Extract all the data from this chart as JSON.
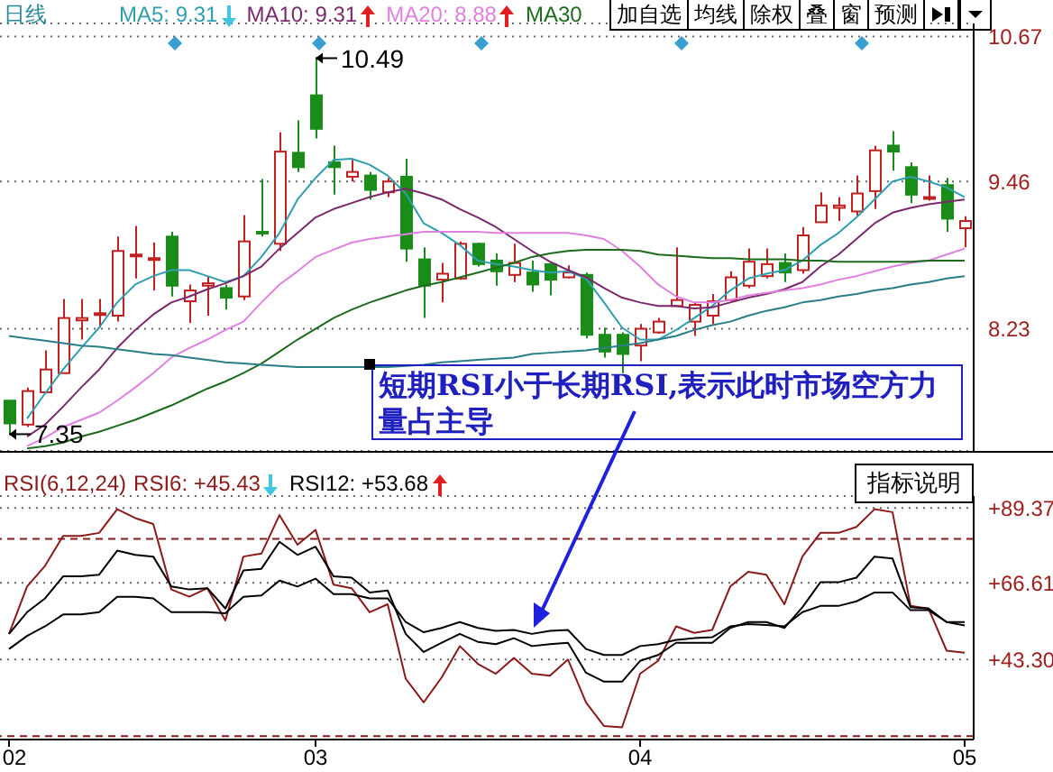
{
  "chart_data": [
    {
      "type": "candlestick",
      "title": "日线",
      "categories": [
        "02",
        null,
        null,
        null,
        null,
        null,
        null,
        null,
        null,
        null,
        null,
        null,
        null,
        null,
        null,
        null,
        null,
        "03",
        null,
        null,
        null,
        null,
        null,
        null,
        null,
        null,
        null,
        null,
        null,
        null,
        null,
        null,
        null,
        null,
        null,
        "04",
        null,
        null,
        null,
        null,
        null,
        null,
        null,
        null,
        null,
        null,
        null,
        null,
        null,
        null,
        null,
        null,
        null,
        "05"
      ],
      "series": [
        {
          "type": "candlestick",
          "ohlc": [
            [
              7.63,
              7.63,
              7.35,
              7.44
            ],
            [
              7.43,
              7.74,
              7.41,
              7.71
            ],
            [
              7.7,
              8.05,
              7.69,
              7.89
            ],
            [
              7.86,
              8.48,
              7.86,
              8.32
            ],
            [
              8.3,
              8.48,
              8.14,
              8.32
            ],
            [
              8.35,
              8.48,
              8.24,
              8.36
            ],
            [
              8.34,
              9.0,
              8.29,
              8.88
            ],
            [
              8.84,
              9.09,
              8.65,
              8.85
            ],
            [
              8.81,
              8.95,
              8.55,
              8.82
            ],
            [
              9.0,
              9.04,
              8.5,
              8.59
            ],
            [
              8.46,
              8.6,
              8.28,
              8.55
            ],
            [
              8.59,
              8.67,
              8.34,
              8.61
            ],
            [
              8.57,
              8.6,
              8.39,
              8.49
            ],
            [
              8.5,
              9.18,
              8.47,
              8.96
            ],
            [
              9.04,
              9.48,
              9.0,
              9.03
            ],
            [
              8.94,
              9.87,
              8.88,
              9.71
            ],
            [
              9.7,
              9.97,
              9.54,
              9.58
            ],
            [
              10.18,
              10.49,
              9.82,
              9.9
            ],
            [
              9.62,
              9.76,
              9.35,
              9.58
            ],
            [
              9.5,
              9.64,
              9.46,
              9.54
            ],
            [
              9.51,
              9.54,
              9.31,
              9.39
            ],
            [
              9.37,
              9.49,
              9.33,
              9.46
            ],
            [
              9.5,
              9.65,
              8.79,
              8.9
            ],
            [
              8.81,
              8.91,
              8.32,
              8.59
            ],
            [
              8.64,
              8.78,
              8.45,
              8.69
            ],
            [
              8.65,
              8.96,
              8.64,
              8.94
            ],
            [
              8.94,
              8.95,
              8.75,
              8.77
            ],
            [
              8.8,
              8.86,
              8.59,
              8.71
            ],
            [
              8.68,
              8.94,
              8.62,
              8.78
            ],
            [
              8.7,
              8.8,
              8.54,
              8.6
            ],
            [
              8.77,
              8.78,
              8.51,
              8.64
            ],
            [
              8.66,
              8.76,
              8.65,
              8.7
            ],
            [
              8.68,
              8.7,
              8.15,
              8.18
            ],
            [
              8.18,
              8.24,
              7.99,
              8.04
            ],
            [
              8.18,
              8.2,
              7.86,
              8.02
            ],
            [
              8.09,
              8.27,
              7.96,
              8.23
            ],
            [
              8.2,
              8.32,
              8.19,
              8.29
            ],
            [
              8.42,
              8.91,
              8.42,
              8.47
            ],
            [
              8.29,
              8.45,
              8.17,
              8.43
            ],
            [
              8.34,
              8.52,
              8.27,
              8.46
            ],
            [
              8.47,
              8.71,
              8.46,
              8.66
            ],
            [
              8.59,
              8.9,
              8.57,
              8.79
            ],
            [
              8.67,
              8.9,
              8.65,
              8.77
            ],
            [
              8.78,
              8.86,
              8.62,
              8.7
            ],
            [
              8.72,
              9.08,
              8.69,
              9.01
            ],
            [
              9.12,
              9.37,
              9.12,
              9.26
            ],
            [
              9.24,
              9.33,
              9.13,
              9.26
            ],
            [
              9.21,
              9.51,
              9.17,
              9.36
            ],
            [
              9.38,
              9.76,
              9.23,
              9.72
            ],
            [
              9.76,
              9.88,
              9.55,
              9.71
            ],
            [
              9.58,
              9.62,
              9.28,
              9.35
            ],
            [
              9.32,
              9.51,
              9.3,
              9.33
            ],
            [
              9.43,
              9.49,
              9.04,
              9.15
            ],
            [
              9.07,
              9.17,
              8.91,
              9.13
            ]
          ],
          "colors": [
            "#1a8c1a",
            "#c02020",
            "#c02020",
            "#c02020",
            "#c02020",
            "#c02020",
            "#c02020",
            "#c02020",
            "#c02020",
            "#1a8c1a",
            "#c02020",
            "#c02020",
            "#1a8c1a",
            "#c02020",
            "#1a8c1a",
            "#c02020",
            "#1a8c1a",
            "#1a8c1a",
            "#1a8c1a",
            "#c02020",
            "#1a8c1a",
            "#c02020",
            "#1a8c1a",
            "#1a8c1a",
            "#c02020",
            "#c02020",
            "#1a8c1a",
            "#1a8c1a",
            "#c02020",
            "#1a8c1a",
            "#1a8c1a",
            "#c02020",
            "#1a8c1a",
            "#1a8c1a",
            "#1a8c1a",
            "#c02020",
            "#c02020",
            "#c02020",
            "#c02020",
            "#c02020",
            "#c02020",
            "#c02020",
            "#c02020",
            "#1a8c1a",
            "#c02020",
            "#c02020",
            "#c02020",
            "#c02020",
            "#c02020",
            "#1a8c1a",
            "#1a8c1a",
            "#c02020",
            "#1a8c1a",
            "#c02020"
          ]
        },
        {
          "type": "line",
          "name": "MA5: 9.31",
          "color": "#2f9fb0",
          "values": [
            null,
            7.48,
            7.69,
            7.89,
            8.07,
            8.24,
            8.45,
            8.6,
            8.67,
            8.72,
            8.72,
            8.67,
            8.62,
            8.67,
            8.83,
            9.03,
            9.31,
            9.49,
            9.64,
            9.65,
            9.6,
            9.51,
            9.36,
            9.11,
            9.03,
            8.93,
            8.8,
            8.77,
            8.75,
            8.72,
            8.7,
            8.71,
            8.65,
            8.45,
            8.24,
            8.14,
            8.14,
            8.22,
            8.32,
            8.42,
            8.55,
            8.65,
            8.69,
            8.72,
            8.8,
            8.93,
            9.03,
            9.16,
            9.31,
            9.46,
            9.5,
            9.46,
            9.41,
            9.33
          ]
        },
        {
          "type": "line",
          "name": "MA10: 9.31",
          "color": "#7a2a6a",
          "values": [
            null,
            7.33,
            7.43,
            7.58,
            7.74,
            7.89,
            8.07,
            8.22,
            8.35,
            8.45,
            8.5,
            8.56,
            8.61,
            8.67,
            8.75,
            8.9,
            9.03,
            9.16,
            9.23,
            9.28,
            9.33,
            9.37,
            9.4,
            9.36,
            9.31,
            9.23,
            9.16,
            9.08,
            8.98,
            8.88,
            8.79,
            8.72,
            8.66,
            8.57,
            8.49,
            8.45,
            8.42,
            8.42,
            8.4,
            8.41,
            8.45,
            8.49,
            8.52,
            8.56,
            8.62,
            8.75,
            8.85,
            8.98,
            9.11,
            9.2,
            9.24,
            9.27,
            9.29,
            9.31
          ]
        },
        {
          "type": "line",
          "name": "MA20: 8.88",
          "color": "#e080e0",
          "values": [
            null,
            7.25,
            7.32,
            7.41,
            7.47,
            7.53,
            7.63,
            7.74,
            7.86,
            7.99,
            8.07,
            8.14,
            8.22,
            8.29,
            8.45,
            8.6,
            8.71,
            8.83,
            8.89,
            8.95,
            8.98,
            9.0,
            9.02,
            9.04,
            9.04,
            9.04,
            9.04,
            9.03,
            9.03,
            9.03,
            9.03,
            9.03,
            9.01,
            8.98,
            8.88,
            8.75,
            8.6,
            8.5,
            8.45,
            8.45,
            8.47,
            8.51,
            8.53,
            8.55,
            8.57,
            8.6,
            8.64,
            8.67,
            8.71,
            8.75,
            8.78,
            8.8,
            8.85,
            8.9
          ]
        },
        {
          "type": "line",
          "name": "MA30",
          "color": "#1e6b1e",
          "values": [
            null,
            7.23,
            7.25,
            7.28,
            7.33,
            7.37,
            7.42,
            7.47,
            7.53,
            7.59,
            7.66,
            7.73,
            7.79,
            7.86,
            7.94,
            8.04,
            8.14,
            8.23,
            8.32,
            8.39,
            8.45,
            8.5,
            8.55,
            8.59,
            8.62,
            8.66,
            8.7,
            8.74,
            8.78,
            8.83,
            8.86,
            8.88,
            8.89,
            8.89,
            8.89,
            8.88,
            8.85,
            8.84,
            8.83,
            8.82,
            8.82,
            8.81,
            8.81,
            8.81,
            8.8,
            8.8,
            8.79,
            8.79,
            8.79,
            8.79,
            8.79,
            8.8,
            8.8,
            8.8
          ]
        },
        {
          "type": "line",
          "color": "#2a7f86",
          "values": [
            8.17,
            8.15,
            8.13,
            8.11,
            8.09,
            8.08,
            8.06,
            8.04,
            8.02,
            8.01,
            7.99,
            7.97,
            7.95,
            7.94,
            7.93,
            7.92,
            7.91,
            7.91,
            7.91,
            7.91,
            7.91,
            7.91,
            7.92,
            7.93,
            7.95,
            7.96,
            7.97,
            7.98,
            7.99,
            8.02,
            8.03,
            8.04,
            8.05,
            8.07,
            8.09,
            8.11,
            8.14,
            8.17,
            8.22,
            8.26,
            8.29,
            8.34,
            8.38,
            8.41,
            8.45,
            8.47,
            8.5,
            8.52,
            8.55,
            8.57,
            8.6,
            8.62,
            8.65,
            8.67
          ]
        }
      ],
      "ylim": [
        7.21,
        10.78
      ],
      "yticks": [
        8.23,
        9.46,
        10.67
      ],
      "grid": "y",
      "legend": "top left",
      "tick_labels": "y",
      "annotations": [
        "加自选",
        "均线",
        "除权",
        "叠",
        "窗",
        "预测",
        "短期RSI小于长期RSI,表示此时市场空方力量占主导",
        {
          "text": "10.49",
          "x": "03",
          "y": 10.49
        },
        {
          "text": "7.35",
          "x": "02",
          "y": 7.35
        }
      ]
    },
    {
      "type": "line",
      "title": "RSI(6,12,24)",
      "categories": [
        "02",
        null,
        null,
        null,
        null,
        null,
        null,
        null,
        null,
        null,
        null,
        null,
        null,
        null,
        null,
        null,
        null,
        "03",
        null,
        null,
        null,
        null,
        null,
        null,
        null,
        null,
        null,
        null,
        null,
        null,
        null,
        null,
        null,
        null,
        null,
        "04",
        null,
        null,
        null,
        null,
        null,
        null,
        null,
        null,
        null,
        null,
        null,
        null,
        null,
        null,
        null,
        null,
        null,
        "05"
      ],
      "series": [
        {
          "name": "RSI6: +45.43",
          "color": "#8b1a1a",
          "values": [
            51.1,
            65.5,
            71.8,
            80.9,
            80.9,
            81.8,
            89.0,
            86.3,
            84.5,
            64.6,
            62.4,
            65.0,
            55.2,
            74.6,
            75.5,
            87.2,
            78.2,
            82.7,
            66.1,
            65.0,
            57.7,
            60.1,
            37.5,
            30.3,
            37.9,
            47.4,
            42.0,
            39.0,
            43.8,
            39.0,
            38.4,
            43.3,
            30.3,
            23.1,
            22.7,
            39.0,
            42.9,
            53.4,
            51.4,
            52.3,
            65.5,
            70.0,
            69.1,
            60.1,
            74.6,
            81.8,
            81.8,
            83.6,
            89.0,
            88.1,
            59.6,
            58.8,
            46.0,
            45.4
          ]
        },
        {
          "name": "RSI12: +53.68",
          "color": "#000000",
          "values": [
            51.1,
            57.7,
            61.9,
            68.6,
            68.6,
            69.1,
            76.4,
            75.1,
            74.6,
            65.5,
            64.6,
            65.0,
            58.8,
            70.4,
            70.9,
            79.1,
            75.1,
            77.6,
            68.6,
            68.2,
            63.7,
            64.3,
            51.1,
            45.6,
            48.4,
            51.1,
            48.7,
            48.0,
            49.8,
            47.4,
            48.0,
            48.4,
            39.3,
            36.6,
            36.6,
            42.9,
            44.7,
            48.4,
            48.4,
            48.4,
            52.9,
            54.7,
            54.7,
            52.9,
            59.2,
            66.8,
            66.8,
            68.2,
            74.6,
            74.0,
            59.2,
            58.8,
            54.7,
            53.7
          ]
        },
        {
          "color": "#000000",
          "values": [
            46.5,
            50.5,
            53.4,
            57.0,
            57.0,
            57.7,
            62.4,
            62.4,
            61.9,
            57.7,
            57.7,
            57.7,
            57.4,
            62.4,
            62.8,
            67.3,
            65.5,
            67.9,
            63.2,
            63.2,
            61.9,
            61.9,
            54.7,
            51.6,
            52.9,
            54.7,
            52.9,
            52.0,
            52.3,
            51.1,
            52.0,
            52.3,
            46.5,
            44.7,
            44.7,
            47.4,
            48.0,
            49.3,
            49.8,
            50.1,
            53.4,
            54.1,
            53.8,
            53.4,
            57.7,
            59.6,
            59.6,
            61.0,
            63.7,
            63.7,
            58.3,
            58.3,
            54.7,
            54.7
          ]
        }
      ],
      "ylim": [
        19,
        93
      ],
      "yticks": [
        {
          "value": 43.3,
          "label": "+43.30"
        },
        {
          "value": 66.61,
          "label": "+66.61"
        },
        {
          "value": 89.37,
          "label": "+89.37"
        }
      ],
      "grid": "y",
      "legend": "top left",
      "ref_lines": [
        {
          "axis": "y",
          "value": 80,
          "color": "#8b1a1a",
          "line_style": "dashed"
        },
        {
          "axis": "y",
          "value": 20,
          "color": "#8b1a1a",
          "line_style": "dashed"
        }
      ],
      "annotations": [
        "指标说明"
      ]
    }
  ]
}
